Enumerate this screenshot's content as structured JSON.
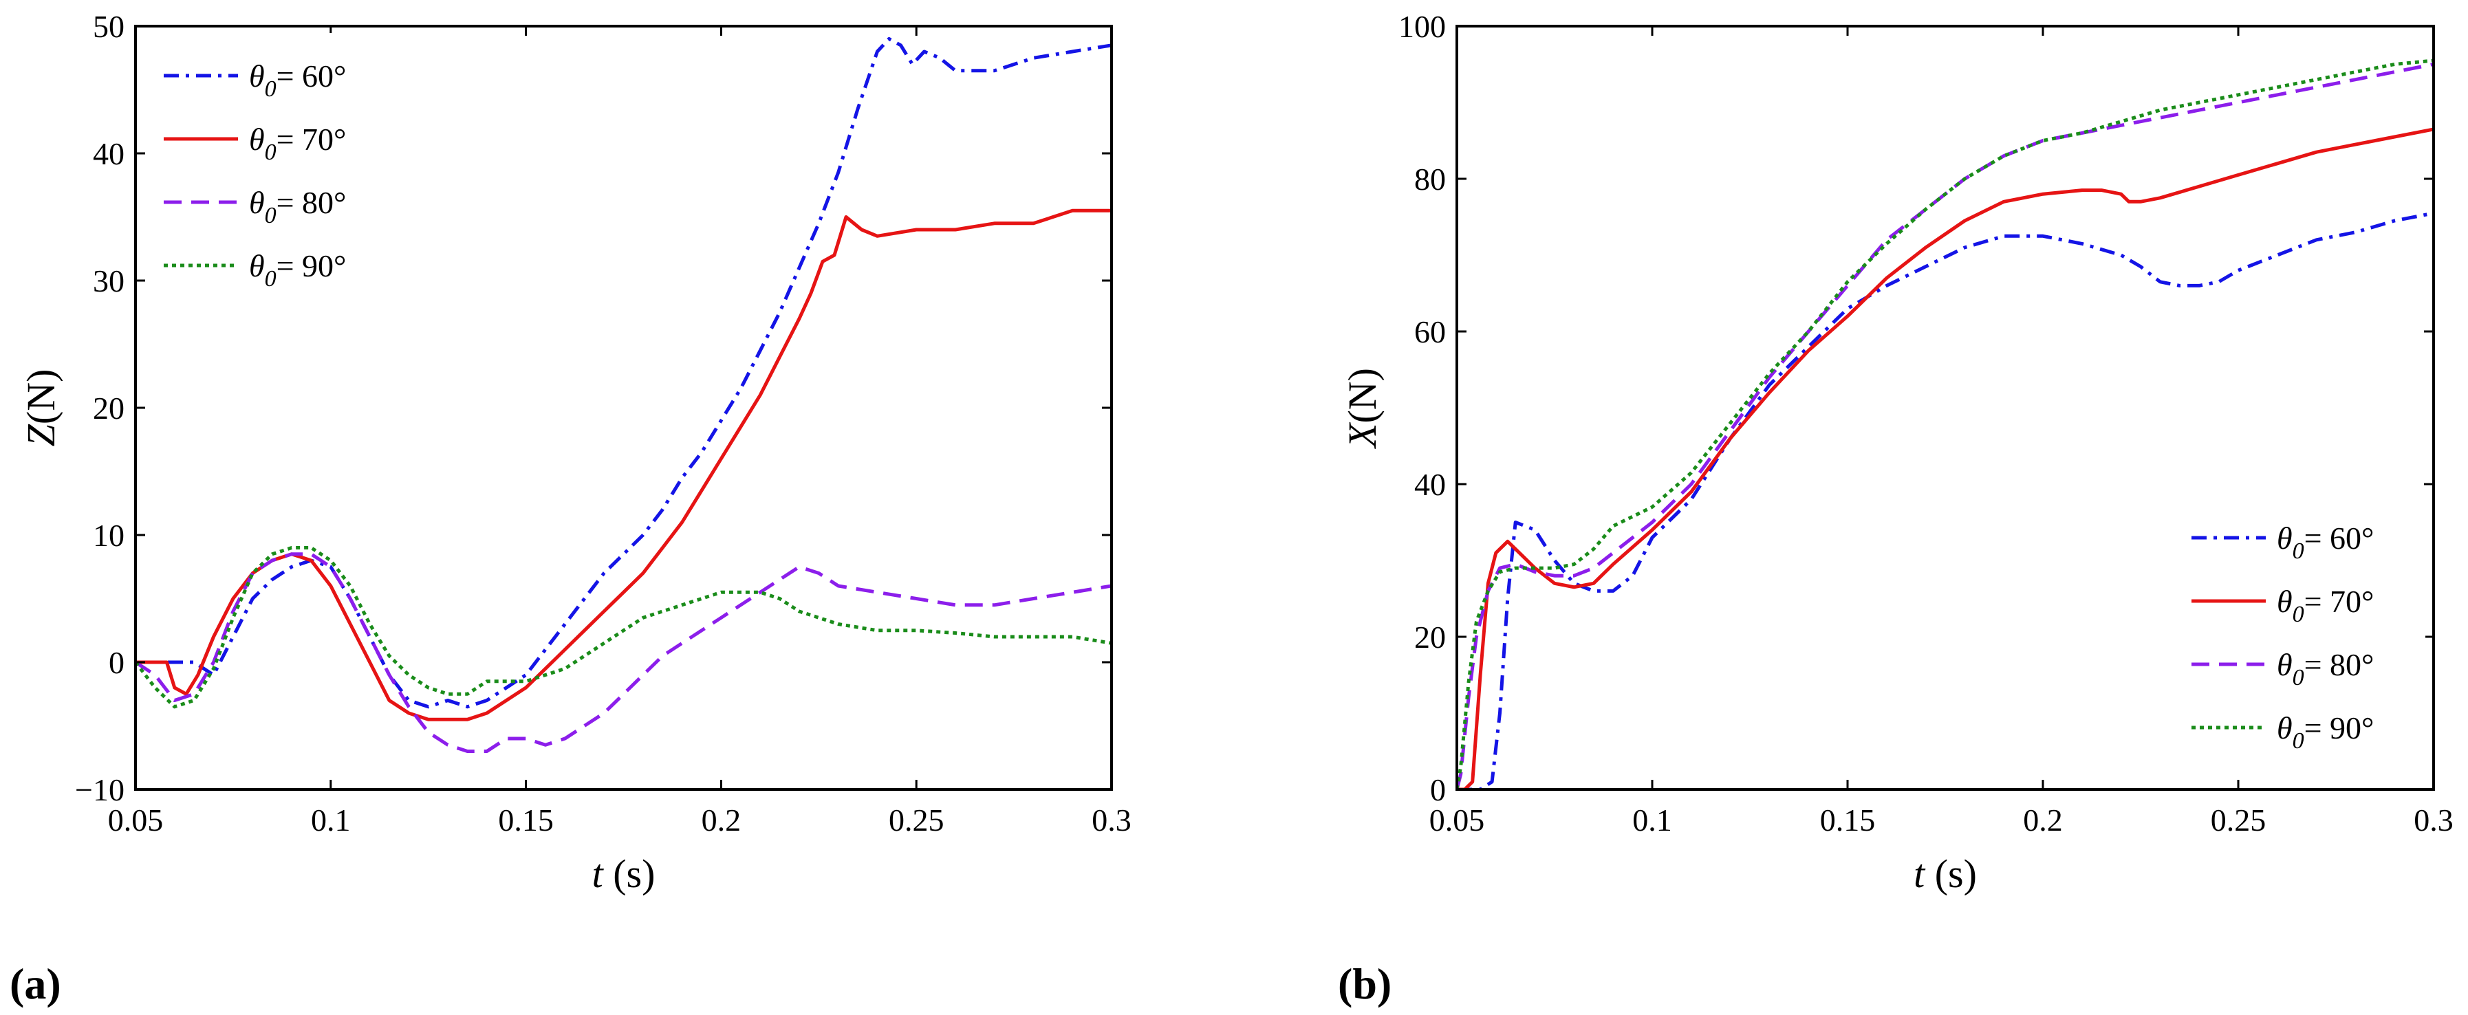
{
  "chart_data": [
    {
      "id": "a",
      "type": "line",
      "panel_label": "(a)",
      "title": "",
      "xlabel_italic": "t",
      "xlabel_unit": " (s)",
      "ylabel_italic": "Z",
      "ylabel_unit": "(N)",
      "xlim": [
        0.05,
        0.3
      ],
      "ylim": [
        -10,
        50
      ],
      "xticks": [
        0.05,
        0.1,
        0.15,
        0.2,
        0.25,
        0.3
      ],
      "xtick_labels": [
        "0.05",
        "0.1",
        "0.15",
        "0.2",
        "0.25",
        "0.3"
      ],
      "yticks": [
        -10,
        0,
        10,
        20,
        30,
        40,
        50
      ],
      "ytick_labels": [
        "−10",
        "0",
        "10",
        "20",
        "30",
        "40",
        "50"
      ],
      "legend_position": "top-left",
      "series": [
        {
          "name_symbol": "θ",
          "name_sub": "0",
          "name_value": "= 60°",
          "color": "#1414e6",
          "dash": "22,10,5,10",
          "x": [
            0.05,
            0.055,
            0.06,
            0.065,
            0.07,
            0.075,
            0.08,
            0.085,
            0.09,
            0.095,
            0.1,
            0.105,
            0.11,
            0.115,
            0.12,
            0.125,
            0.13,
            0.135,
            0.14,
            0.145,
            0.15,
            0.155,
            0.16,
            0.165,
            0.17,
            0.175,
            0.18,
            0.185,
            0.19,
            0.195,
            0.2,
            0.205,
            0.21,
            0.215,
            0.22,
            0.225,
            0.23,
            0.235,
            0.24,
            0.243,
            0.246,
            0.249,
            0.252,
            0.256,
            0.26,
            0.27,
            0.28,
            0.29,
            0.3
          ],
          "y": [
            0,
            0,
            0,
            0,
            -1,
            2,
            5,
            6.5,
            7.5,
            8,
            7.5,
            5,
            2,
            -1,
            -3,
            -3.5,
            -3,
            -3.5,
            -3,
            -2,
            -1,
            1,
            3,
            5,
            7,
            8.5,
            10,
            12,
            14.5,
            16.5,
            19,
            21.5,
            24.5,
            27.5,
            31,
            34.5,
            38.5,
            43.5,
            48,
            49,
            48.5,
            47,
            48,
            47.5,
            46.5,
            46.5,
            47.5,
            48,
            48.5
          ]
        },
        {
          "name_symbol": "θ",
          "name_sub": "0",
          "name_value": "= 70°",
          "color": "#e61414",
          "dash": "",
          "x": [
            0.05,
            0.055,
            0.058,
            0.06,
            0.063,
            0.066,
            0.07,
            0.075,
            0.08,
            0.085,
            0.09,
            0.095,
            0.1,
            0.105,
            0.11,
            0.115,
            0.12,
            0.125,
            0.13,
            0.135,
            0.14,
            0.145,
            0.15,
            0.155,
            0.16,
            0.165,
            0.17,
            0.175,
            0.18,
            0.185,
            0.19,
            0.195,
            0.2,
            0.205,
            0.21,
            0.215,
            0.22,
            0.223,
            0.226,
            0.229,
            0.232,
            0.236,
            0.24,
            0.25,
            0.26,
            0.27,
            0.28,
            0.29,
            0.3
          ],
          "y": [
            0,
            0,
            0,
            -2,
            -2.5,
            -1,
            2,
            5,
            7,
            8,
            8.5,
            8,
            6,
            3,
            0,
            -3,
            -4,
            -4.5,
            -4.5,
            -4.5,
            -4,
            -3,
            -2,
            -0.5,
            1,
            2.5,
            4,
            5.5,
            7,
            9,
            11,
            13.5,
            16,
            18.5,
            21,
            24,
            27,
            29,
            31.5,
            32,
            35,
            34,
            33.5,
            34,
            34,
            34.5,
            34.5,
            35.5,
            35.5
          ]
        },
        {
          "name_symbol": "θ",
          "name_sub": "0",
          "name_value": "= 80°",
          "color": "#8c1eeb",
          "dash": "26,14",
          "x": [
            0.05,
            0.055,
            0.06,
            0.065,
            0.07,
            0.075,
            0.08,
            0.085,
            0.09,
            0.095,
            0.1,
            0.105,
            0.11,
            0.115,
            0.12,
            0.125,
            0.13,
            0.135,
            0.14,
            0.145,
            0.15,
            0.155,
            0.16,
            0.165,
            0.17,
            0.175,
            0.18,
            0.185,
            0.19,
            0.195,
            0.2,
            0.205,
            0.21,
            0.215,
            0.22,
            0.225,
            0.23,
            0.24,
            0.25,
            0.26,
            0.27,
            0.28,
            0.29,
            0.3
          ],
          "y": [
            0,
            -1,
            -3,
            -2.5,
            0,
            4,
            7,
            8,
            8.5,
            8.5,
            7.5,
            5,
            2,
            -1,
            -3.5,
            -5.5,
            -6.5,
            -7,
            -7,
            -6,
            -6,
            -6.5,
            -6,
            -5,
            -4,
            -2.5,
            -1,
            0.5,
            1.5,
            2.5,
            3.5,
            4.5,
            5.5,
            6.5,
            7.5,
            7,
            6,
            5.5,
            5,
            4.5,
            4.5,
            5,
            5.5,
            6
          ]
        },
        {
          "name_symbol": "θ",
          "name_sub": "0",
          "name_value": "= 90°",
          "color": "#1a8c1a",
          "dash": "6,6",
          "x": [
            0.05,
            0.055,
            0.06,
            0.065,
            0.07,
            0.075,
            0.08,
            0.085,
            0.09,
            0.095,
            0.1,
            0.105,
            0.11,
            0.115,
            0.12,
            0.125,
            0.13,
            0.135,
            0.14,
            0.145,
            0.15,
            0.155,
            0.16,
            0.165,
            0.17,
            0.175,
            0.18,
            0.185,
            0.19,
            0.195,
            0.2,
            0.205,
            0.21,
            0.215,
            0.22,
            0.23,
            0.24,
            0.25,
            0.26,
            0.27,
            0.28,
            0.29,
            0.3
          ],
          "y": [
            0,
            -2,
            -3.5,
            -3,
            -0.5,
            3.5,
            7,
            8.5,
            9,
            9,
            8,
            6,
            3,
            0.5,
            -1,
            -2,
            -2.5,
            -2.5,
            -1.5,
            -1.5,
            -1.5,
            -1,
            -0.5,
            0.5,
            1.5,
            2.5,
            3.5,
            4,
            4.5,
            5,
            5.5,
            5.5,
            5.5,
            5,
            4,
            3,
            2.5,
            2.5,
            2.3,
            2,
            2,
            2,
            1.5
          ]
        }
      ]
    },
    {
      "id": "b",
      "type": "line",
      "panel_label": "(b)",
      "title": "",
      "xlabel_italic": "t",
      "xlabel_unit": " (s)",
      "ylabel_italic": "X",
      "ylabel_unit": "(N)",
      "xlim": [
        0.05,
        0.3
      ],
      "ylim": [
        0,
        100
      ],
      "xticks": [
        0.05,
        0.1,
        0.15,
        0.2,
        0.25,
        0.3
      ],
      "xtick_labels": [
        "0.05",
        "0.1",
        "0.15",
        "0.2",
        "0.25",
        "0.3"
      ],
      "yticks": [
        0,
        20,
        40,
        60,
        80,
        100
      ],
      "ytick_labels": [
        "0",
        "20",
        "40",
        "60",
        "80",
        "100"
      ],
      "legend_position": "bottom-right",
      "series": [
        {
          "name_symbol": "θ",
          "name_sub": "0",
          "name_value": "= 60°",
          "color": "#1414e6",
          "dash": "22,10,5,10",
          "x": [
            0.05,
            0.056,
            0.059,
            0.061,
            0.063,
            0.065,
            0.07,
            0.075,
            0.08,
            0.085,
            0.09,
            0.095,
            0.1,
            0.11,
            0.12,
            0.13,
            0.14,
            0.15,
            0.16,
            0.17,
            0.18,
            0.19,
            0.2,
            0.21,
            0.22,
            0.225,
            0.23,
            0.235,
            0.24,
            0.245,
            0.25,
            0.26,
            0.27,
            0.28,
            0.29,
            0.3
          ],
          "y": [
            0,
            0,
            1,
            10,
            25,
            35,
            34,
            30,
            27,
            26,
            26,
            28,
            33,
            38,
            46,
            53,
            58,
            63,
            66,
            68.5,
            71,
            72.5,
            72.5,
            71.5,
            70,
            68.5,
            66.5,
            66,
            66,
            66.5,
            68,
            70,
            72,
            73,
            74.5,
            75.5
          ]
        },
        {
          "name_symbol": "θ",
          "name_sub": "0",
          "name_value": "= 70°",
          "color": "#e61414",
          "dash": "",
          "x": [
            0.05,
            0.052,
            0.054,
            0.056,
            0.058,
            0.06,
            0.063,
            0.066,
            0.07,
            0.075,
            0.08,
            0.085,
            0.09,
            0.1,
            0.11,
            0.12,
            0.13,
            0.14,
            0.15,
            0.16,
            0.17,
            0.18,
            0.19,
            0.2,
            0.21,
            0.215,
            0.22,
            0.222,
            0.225,
            0.23,
            0.24,
            0.25,
            0.26,
            0.27,
            0.28,
            0.29,
            0.3
          ],
          "y": [
            0,
            0,
            1,
            15,
            27,
            31,
            32.5,
            31,
            29,
            27,
            26.5,
            27,
            29.5,
            34,
            39,
            46,
            52,
            57.5,
            62,
            67,
            71,
            74.5,
            77,
            78,
            78.5,
            78.5,
            78,
            77,
            77,
            77.5,
            79,
            80.5,
            82,
            83.5,
            84.5,
            85.5,
            86.5
          ]
        },
        {
          "name_symbol": "θ",
          "name_sub": "0",
          "name_value": "= 80°",
          "color": "#8c1eeb",
          "dash": "26,14",
          "x": [
            0.05,
            0.051,
            0.053,
            0.055,
            0.058,
            0.061,
            0.065,
            0.07,
            0.075,
            0.08,
            0.085,
            0.09,
            0.1,
            0.11,
            0.12,
            0.13,
            0.14,
            0.15,
            0.16,
            0.17,
            0.18,
            0.19,
            0.2,
            0.21,
            0.22,
            0.23,
            0.24,
            0.25,
            0.26,
            0.27,
            0.28,
            0.29,
            0.3
          ],
          "y": [
            0,
            2,
            12,
            20,
            26,
            29,
            29.5,
            28.5,
            28,
            28,
            29,
            31,
            35,
            40,
            47,
            54,
            60,
            66,
            72,
            76,
            80,
            83,
            85,
            86,
            87,
            88,
            89,
            90,
            91,
            92,
            93,
            94,
            95
          ]
        },
        {
          "name_symbol": "θ",
          "name_sub": "0",
          "name_value": "= 90°",
          "color": "#1a8c1a",
          "dash": "6,6",
          "x": [
            0.05,
            0.051,
            0.053,
            0.055,
            0.058,
            0.061,
            0.065,
            0.07,
            0.075,
            0.08,
            0.085,
            0.09,
            0.1,
            0.11,
            0.12,
            0.13,
            0.14,
            0.15,
            0.16,
            0.17,
            0.18,
            0.19,
            0.2,
            0.21,
            0.22,
            0.23,
            0.24,
            0.25,
            0.26,
            0.27,
            0.28,
            0.29,
            0.3
          ],
          "y": [
            0,
            3,
            14,
            22,
            26,
            28.5,
            29,
            29,
            29,
            29.5,
            31.5,
            34.5,
            37,
            41.5,
            48,
            54.5,
            60,
            66.5,
            71.5,
            76,
            80,
            83,
            85,
            86,
            87.5,
            89,
            90,
            91,
            92,
            93,
            94,
            95,
            95.5
          ]
        }
      ]
    }
  ]
}
